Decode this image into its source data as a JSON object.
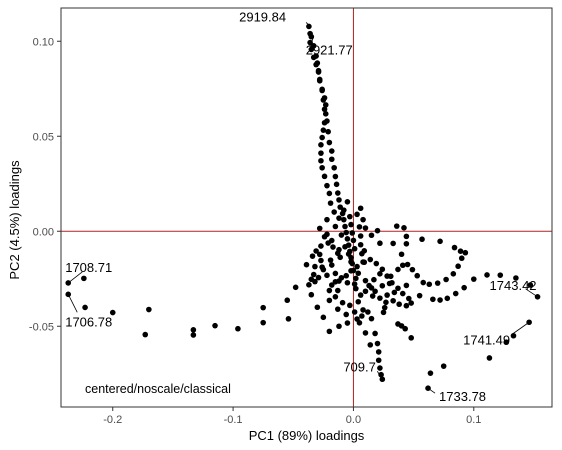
{
  "chart_data": {
    "type": "scatter",
    "title": "",
    "xlabel": "PC1 (89%) loadings",
    "ylabel": "PC2 (4.5%) loadings",
    "annotation": "centered/noscale/classical",
    "xlim": [
      -0.243,
      0.165
    ],
    "ylim": [
      -0.0925,
      0.1175
    ],
    "x_ticks": [
      -0.2,
      -0.1,
      0.0,
      0.1
    ],
    "x_tick_labels": [
      "-0.2",
      "-0.1",
      "0.0",
      "0.1"
    ],
    "y_ticks": [
      -0.05,
      0.0,
      0.05,
      0.1
    ],
    "y_tick_labels": [
      "-0.05",
      "0.00",
      "0.05",
      "0.10"
    ],
    "reference_lines": {
      "x": 0.0,
      "y": 0.0,
      "color": "#b22222"
    },
    "grid": false,
    "point_color": "#000000",
    "points": [
      [
        -0.237,
        -0.0272
      ],
      [
        -0.237,
        -0.0332
      ],
      [
        -0.223,
        -0.0401
      ],
      [
        -0.224,
        -0.0248
      ],
      [
        -0.2,
        -0.0428
      ],
      [
        -0.17,
        -0.0412
      ],
      [
        -0.173,
        -0.0544
      ],
      [
        -0.133,
        -0.0519
      ],
      [
        -0.133,
        -0.0546
      ],
      [
        -0.115,
        -0.0497
      ],
      [
        -0.096,
        -0.0513
      ],
      [
        -0.075,
        -0.0481
      ],
      [
        -0.054,
        -0.0461
      ],
      [
        -0.075,
        -0.0402
      ],
      [
        -0.055,
        -0.0363
      ],
      [
        -0.048,
        -0.0295
      ],
      [
        -0.032,
        -0.0265
      ],
      [
        -0.013,
        -0.0312
      ],
      [
        0.001,
        -0.0278
      ],
      [
        0.015,
        -0.0298
      ],
      [
        0.03,
        -0.0275
      ],
      [
        0.044,
        -0.0285
      ],
      [
        0.055,
        -0.0339
      ],
      [
        0.066,
        -0.0358
      ],
      [
        0.072,
        -0.0362
      ],
      [
        0.078,
        -0.0353
      ],
      [
        0.085,
        -0.0328
      ],
      [
        0.092,
        -0.0297
      ],
      [
        0.1,
        -0.0252
      ],
      [
        0.111,
        -0.023
      ],
      [
        0.122,
        -0.0231
      ],
      [
        0.135,
        -0.0246
      ],
      [
        0.147,
        -0.0283
      ],
      [
        0.153,
        -0.0345
      ],
      [
        0.146,
        -0.0479
      ],
      [
        0.133,
        -0.055
      ],
      [
        0.127,
        -0.0584
      ],
      [
        0.113,
        -0.0667
      ],
      [
        0.075,
        -0.071
      ],
      [
        0.064,
        -0.0747
      ],
      [
        0.062,
        -0.0826
      ],
      [
        0.048,
        -0.0561
      ],
      [
        0.043,
        -0.0513
      ],
      [
        0.04,
        -0.0498
      ],
      [
        0.037,
        -0.0488
      ],
      [
        0.025,
        -0.0427
      ],
      [
        0.008,
        -0.0414
      ],
      [
        0.015,
        -0.046
      ],
      [
        0.018,
        -0.0538
      ],
      [
        0.02,
        -0.0591
      ],
      [
        0.021,
        -0.0635
      ],
      [
        0.021,
        -0.0679
      ],
      [
        0.022,
        -0.072
      ],
      [
        0.023,
        -0.0755
      ],
      [
        0.024,
        -0.0779
      ],
      [
        0.014,
        -0.0598
      ],
      [
        0.01,
        -0.0535
      ],
      [
        0.005,
        -0.0482
      ],
      [
        0.007,
        -0.0446
      ],
      [
        0.012,
        -0.0425
      ],
      [
        0.003,
        -0.0462
      ],
      [
        -0.005,
        -0.0483
      ],
      [
        -0.012,
        -0.05
      ],
      [
        -0.02,
        -0.0527
      ],
      [
        -0.025,
        -0.0453
      ],
      [
        -0.03,
        -0.04
      ],
      [
        -0.035,
        -0.0334
      ],
      [
        -0.037,
        -0.0282
      ],
      [
        -0.035,
        -0.0253
      ],
      [
        -0.029,
        -0.0244
      ],
      [
        -0.022,
        -0.0232
      ],
      [
        -0.015,
        -0.0222
      ],
      [
        -0.01,
        -0.0245
      ],
      [
        -0.005,
        -0.0271
      ],
      [
        0.002,
        -0.0302
      ],
      [
        0.006,
        -0.0336
      ],
      [
        0.004,
        -0.0371
      ],
      [
        -0.003,
        -0.039
      ],
      [
        -0.009,
        -0.0376
      ],
      [
        -0.015,
        -0.0345
      ],
      [
        -0.02,
        -0.0312
      ],
      [
        -0.018,
        -0.0283
      ],
      [
        -0.012,
        -0.0262
      ],
      [
        -0.006,
        -0.0234
      ],
      [
        -0.002,
        -0.0208
      ],
      [
        0.003,
        -0.0186
      ],
      [
        0.009,
        -0.0163
      ],
      [
        0.014,
        -0.0149
      ],
      [
        0.019,
        -0.017
      ],
      [
        0.024,
        -0.02
      ],
      [
        0.028,
        -0.0236
      ],
      [
        0.032,
        -0.0271
      ],
      [
        0.037,
        -0.03
      ],
      [
        0.022,
        -0.0224
      ],
      [
        0.017,
        -0.0255
      ],
      [
        0.013,
        -0.0286
      ],
      [
        0.01,
        -0.0316
      ],
      [
        0.016,
        -0.0341
      ],
      [
        0.022,
        -0.0352
      ],
      [
        0.028,
        -0.0336
      ],
      [
        0.034,
        -0.0322
      ],
      [
        0.041,
        -0.0328
      ],
      [
        0.046,
        -0.0354
      ],
      [
        0.048,
        -0.0378
      ],
      [
        0.044,
        -0.0392
      ],
      [
        0.038,
        -0.0384
      ],
      [
        0.033,
        -0.0366
      ],
      [
        0.027,
        -0.0374
      ],
      [
        0.026,
        -0.0402
      ],
      [
        0.018,
        -0.0316
      ],
      [
        0.024,
        -0.0287
      ],
      [
        0.031,
        -0.0237
      ],
      [
        0.037,
        -0.0201
      ],
      [
        0.041,
        -0.0179
      ],
      [
        0.045,
        -0.0175
      ],
      [
        0.049,
        -0.0202
      ],
      [
        0.053,
        -0.0234
      ],
      [
        0.058,
        -0.027
      ],
      [
        0.063,
        -0.0279
      ],
      [
        0.07,
        -0.0273
      ],
      [
        0.077,
        -0.0254
      ],
      [
        0.083,
        -0.0224
      ],
      [
        0.087,
        -0.0184
      ],
      [
        0.09,
        -0.0142
      ],
      [
        0.093,
        -0.0113
      ],
      [
        0.089,
        -0.0105
      ],
      [
        0.084,
        -0.0086
      ],
      [
        0.072,
        -0.0053
      ],
      [
        0.057,
        -0.0042
      ],
      [
        0.044,
        -0.0066
      ],
      [
        0.04,
        -0.0121
      ],
      [
        0.033,
        -0.0064
      ],
      [
        0.036,
        0.0027
      ],
      [
        0.042,
        0.0018
      ],
      [
        0.044,
        -0.0027
      ],
      [
        0.01,
        0.0017
      ],
      [
        0.015,
        -0.0021
      ],
      [
        0.022,
        -0.0063
      ],
      [
        0.02,
        0.0003
      ],
      [
        0.009,
        -0.0103
      ],
      [
        -0.028,
        -0.0122
      ],
      [
        -0.027,
        -0.0154
      ],
      [
        -0.032,
        -0.0186
      ],
      [
        -0.025,
        -0.0202
      ],
      [
        -0.018,
        -0.0178
      ],
      [
        -0.011,
        -0.0137
      ],
      [
        -0.012,
        -0.0097
      ],
      [
        -0.017,
        -0.0083
      ],
      [
        -0.021,
        -0.0062
      ],
      [
        -0.024,
        -0.0029
      ],
      [
        -0.028,
        0.0015
      ],
      [
        -0.022,
        0.0061
      ],
      [
        -0.016,
        0.0101
      ],
      [
        -0.019,
        0.0148
      ],
      [
        -0.02,
        0.0199
      ],
      [
        -0.022,
        0.024
      ],
      [
        -0.024,
        0.0289
      ],
      [
        -0.026,
        0.0334
      ],
      [
        -0.027,
        0.0371
      ],
      [
        -0.027,
        0.0411
      ],
      [
        -0.027,
        0.0455
      ],
      [
        -0.026,
        0.0493
      ],
      [
        -0.025,
        0.0532
      ],
      [
        -0.024,
        0.0571
      ],
      [
        -0.023,
        0.0618
      ],
      [
        -0.023,
        0.0665
      ],
      [
        -0.024,
        0.0702
      ],
      [
        -0.026,
        0.0747
      ],
      [
        -0.028,
        0.0799
      ],
      [
        -0.029,
        0.0838
      ],
      [
        -0.031,
        0.0877
      ],
      [
        -0.033,
        0.0915
      ],
      [
        -0.035,
        0.0957
      ],
      [
        -0.036,
        0.0993
      ],
      [
        -0.036,
        0.104
      ],
      [
        -0.037,
        0.1078
      ],
      [
        -0.035,
        0.1024
      ],
      [
        -0.033,
        0.0976
      ],
      [
        -0.031,
        0.0922
      ],
      [
        -0.03,
        0.0885
      ],
      [
        -0.029,
        0.0845
      ],
      [
        -0.028,
        0.0792
      ],
      [
        -0.026,
        0.0741
      ],
      [
        -0.025,
        0.0691
      ],
      [
        -0.024,
        0.0642
      ],
      [
        -0.022,
        0.058
      ],
      [
        -0.021,
        0.0524
      ],
      [
        -0.02,
        0.0467
      ],
      [
        -0.018,
        0.0422
      ],
      [
        -0.018,
        0.0379
      ],
      [
        -0.016,
        0.0334
      ],
      [
        -0.015,
        0.0288
      ],
      [
        -0.014,
        0.0247
      ],
      [
        -0.013,
        0.0201
      ],
      [
        -0.012,
        0.0165
      ],
      [
        -0.011,
        0.0127
      ],
      [
        -0.009,
        0.0093
      ],
      [
        -0.008,
        0.0061
      ],
      [
        -0.007,
        0.0025
      ],
      [
        -0.006,
        -0.0007
      ],
      [
        -0.005,
        -0.004
      ],
      [
        -0.004,
        -0.0073
      ],
      [
        -0.003,
        -0.0106
      ],
      [
        -0.002,
        -0.0139
      ],
      [
        -0.001,
        -0.017
      ],
      [
        -0.01,
        -0.002
      ],
      [
        -0.015,
        0.0025
      ],
      [
        -0.012,
        0.0069
      ],
      [
        -0.008,
        0.0111
      ],
      [
        -0.005,
        0.0155
      ],
      [
        -0.003,
        0.0077
      ],
      [
        -0.002,
        0.0035
      ],
      [
        -0.001,
        -0.0009
      ],
      [
        0.0,
        -0.0048
      ],
      [
        0.001,
        -0.0092
      ],
      [
        -0.018,
        -0.0049
      ],
      [
        -0.022,
        -0.0016
      ],
      [
        -0.027,
        -0.0078
      ],
      [
        -0.031,
        -0.0104
      ],
      [
        -0.034,
        -0.0131
      ],
      [
        -0.039,
        -0.0176
      ],
      [
        -0.033,
        -0.0228
      ],
      [
        -0.026,
        -0.0189
      ],
      [
        -0.019,
        -0.0152
      ],
      [
        -0.013,
        -0.0116
      ],
      [
        -0.007,
        -0.0082
      ],
      [
        -0.004,
        -0.012
      ],
      [
        -0.002,
        -0.0161
      ],
      [
        0.0,
        -0.0207
      ],
      [
        0.002,
        -0.0248
      ],
      [
        0.003,
        0.0089
      ],
      [
        0.006,
        0.0121
      ],
      [
        0.008,
        0.0061
      ],
      [
        0.005,
        0.0023
      ],
      [
        0.006,
        -0.0025
      ],
      [
        0.006,
        -0.0071
      ],
      [
        0.007,
        -0.0118
      ],
      [
        0.008,
        -0.0162
      ],
      [
        0.004,
        -0.0221
      ],
      [
        0.01,
        -0.026
      ],
      [
        -0.015,
        -0.0266
      ],
      [
        -0.02,
        -0.0364
      ],
      [
        -0.013,
        -0.041
      ],
      [
        -0.006,
        -0.0438
      ],
      [
        0.001,
        -0.0425
      ]
    ],
    "point_labels": [
      {
        "text": "2919.84",
        "x": -0.036,
        "y": 0.1078
      },
      {
        "text": "2921.77",
        "x": -0.033,
        "y": 0.1024
      },
      {
        "text": "1708.71",
        "x": -0.237,
        "y": -0.0272
      },
      {
        "text": "1706.78",
        "x": -0.237,
        "y": -0.0332
      },
      {
        "text": "1743.42",
        "x": 0.153,
        "y": -0.0345
      },
      {
        "text": "1741.49",
        "x": 0.146,
        "y": -0.0479
      },
      {
        "text": "709.7",
        "x": 0.024,
        "y": -0.0779
      },
      {
        "text": "1733.78",
        "x": 0.062,
        "y": -0.0826
      }
    ]
  }
}
